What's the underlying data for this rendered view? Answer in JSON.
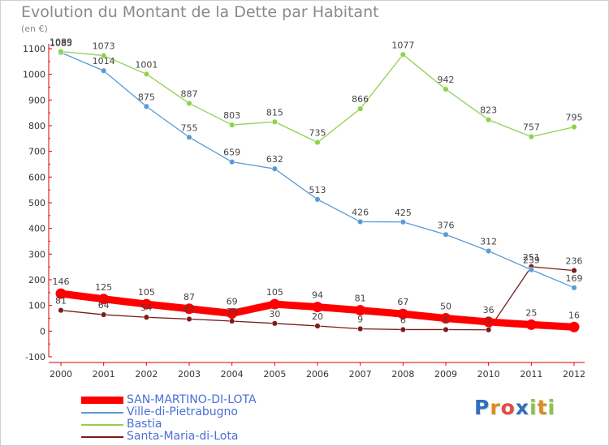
{
  "chart_data": {
    "type": "line",
    "title": "Evolution du Montant de la Dette par Habitant",
    "unit": "(en €)",
    "x": [
      2000,
      2001,
      2002,
      2003,
      2004,
      2005,
      2006,
      2007,
      2008,
      2009,
      2010,
      2011,
      2012
    ],
    "ylim": [
      -100,
      1100
    ],
    "yticks": [
      -100,
      0,
      100,
      200,
      300,
      400,
      500,
      600,
      700,
      800,
      900,
      1000,
      1100
    ],
    "grid": false,
    "legend_position": "bottom-left",
    "series": [
      {
        "name": "SAN-MARTINO-DI-LOTA",
        "color": "#ff0000",
        "values": [
          146,
          125,
          105,
          87,
          69,
          105,
          94,
          81,
          67,
          50,
          36,
          25,
          16
        ],
        "labels": [
          "146",
          "125",
          "105",
          "87",
          "69",
          "105",
          "94",
          "81",
          "67",
          "50",
          "36",
          "25",
          "16"
        ]
      },
      {
        "name": "Ville-di-Pietrabugno",
        "color": "#5b9bd5",
        "values": [
          1085,
          1014,
          875,
          755,
          659,
          632,
          513,
          426,
          425,
          376,
          312,
          239,
          169
        ],
        "labels": [
          "1085",
          "1014",
          "875",
          "755",
          "659",
          "632",
          "513",
          "426",
          "425",
          "376",
          "312",
          "239",
          "169"
        ]
      },
      {
        "name": "Bastia",
        "color": "#8fd14f",
        "values": [
          1089,
          1073,
          1001,
          887,
          803,
          815,
          735,
          866,
          1077,
          942,
          823,
          757,
          795
        ],
        "labels": [
          "1089",
          "1073",
          "1001",
          "887",
          "803",
          "815",
          "735",
          "866",
          "1077",
          "942",
          "823",
          "757",
          "795"
        ]
      },
      {
        "name": "Santa-Maria-di-Lota",
        "color": "#7b1c1c",
        "values": [
          81,
          64,
          54,
          47,
          39,
          30,
          20,
          9,
          6,
          6,
          5,
          251,
          236
        ],
        "labels": [
          "81",
          "64",
          "54",
          "47",
          "39",
          "30",
          "20",
          "9",
          "6",
          "6",
          "5",
          "251",
          "236"
        ]
      }
    ]
  },
  "brand": {
    "letters": [
      "P",
      "r",
      "o",
      "x",
      "i",
      "t",
      "i"
    ],
    "colors": [
      "#2f6fbf",
      "#e08a1e",
      "#e24a4a",
      "#2f6fbf",
      "#8bc34a",
      "#e08a1e",
      "#8bc34a"
    ]
  }
}
